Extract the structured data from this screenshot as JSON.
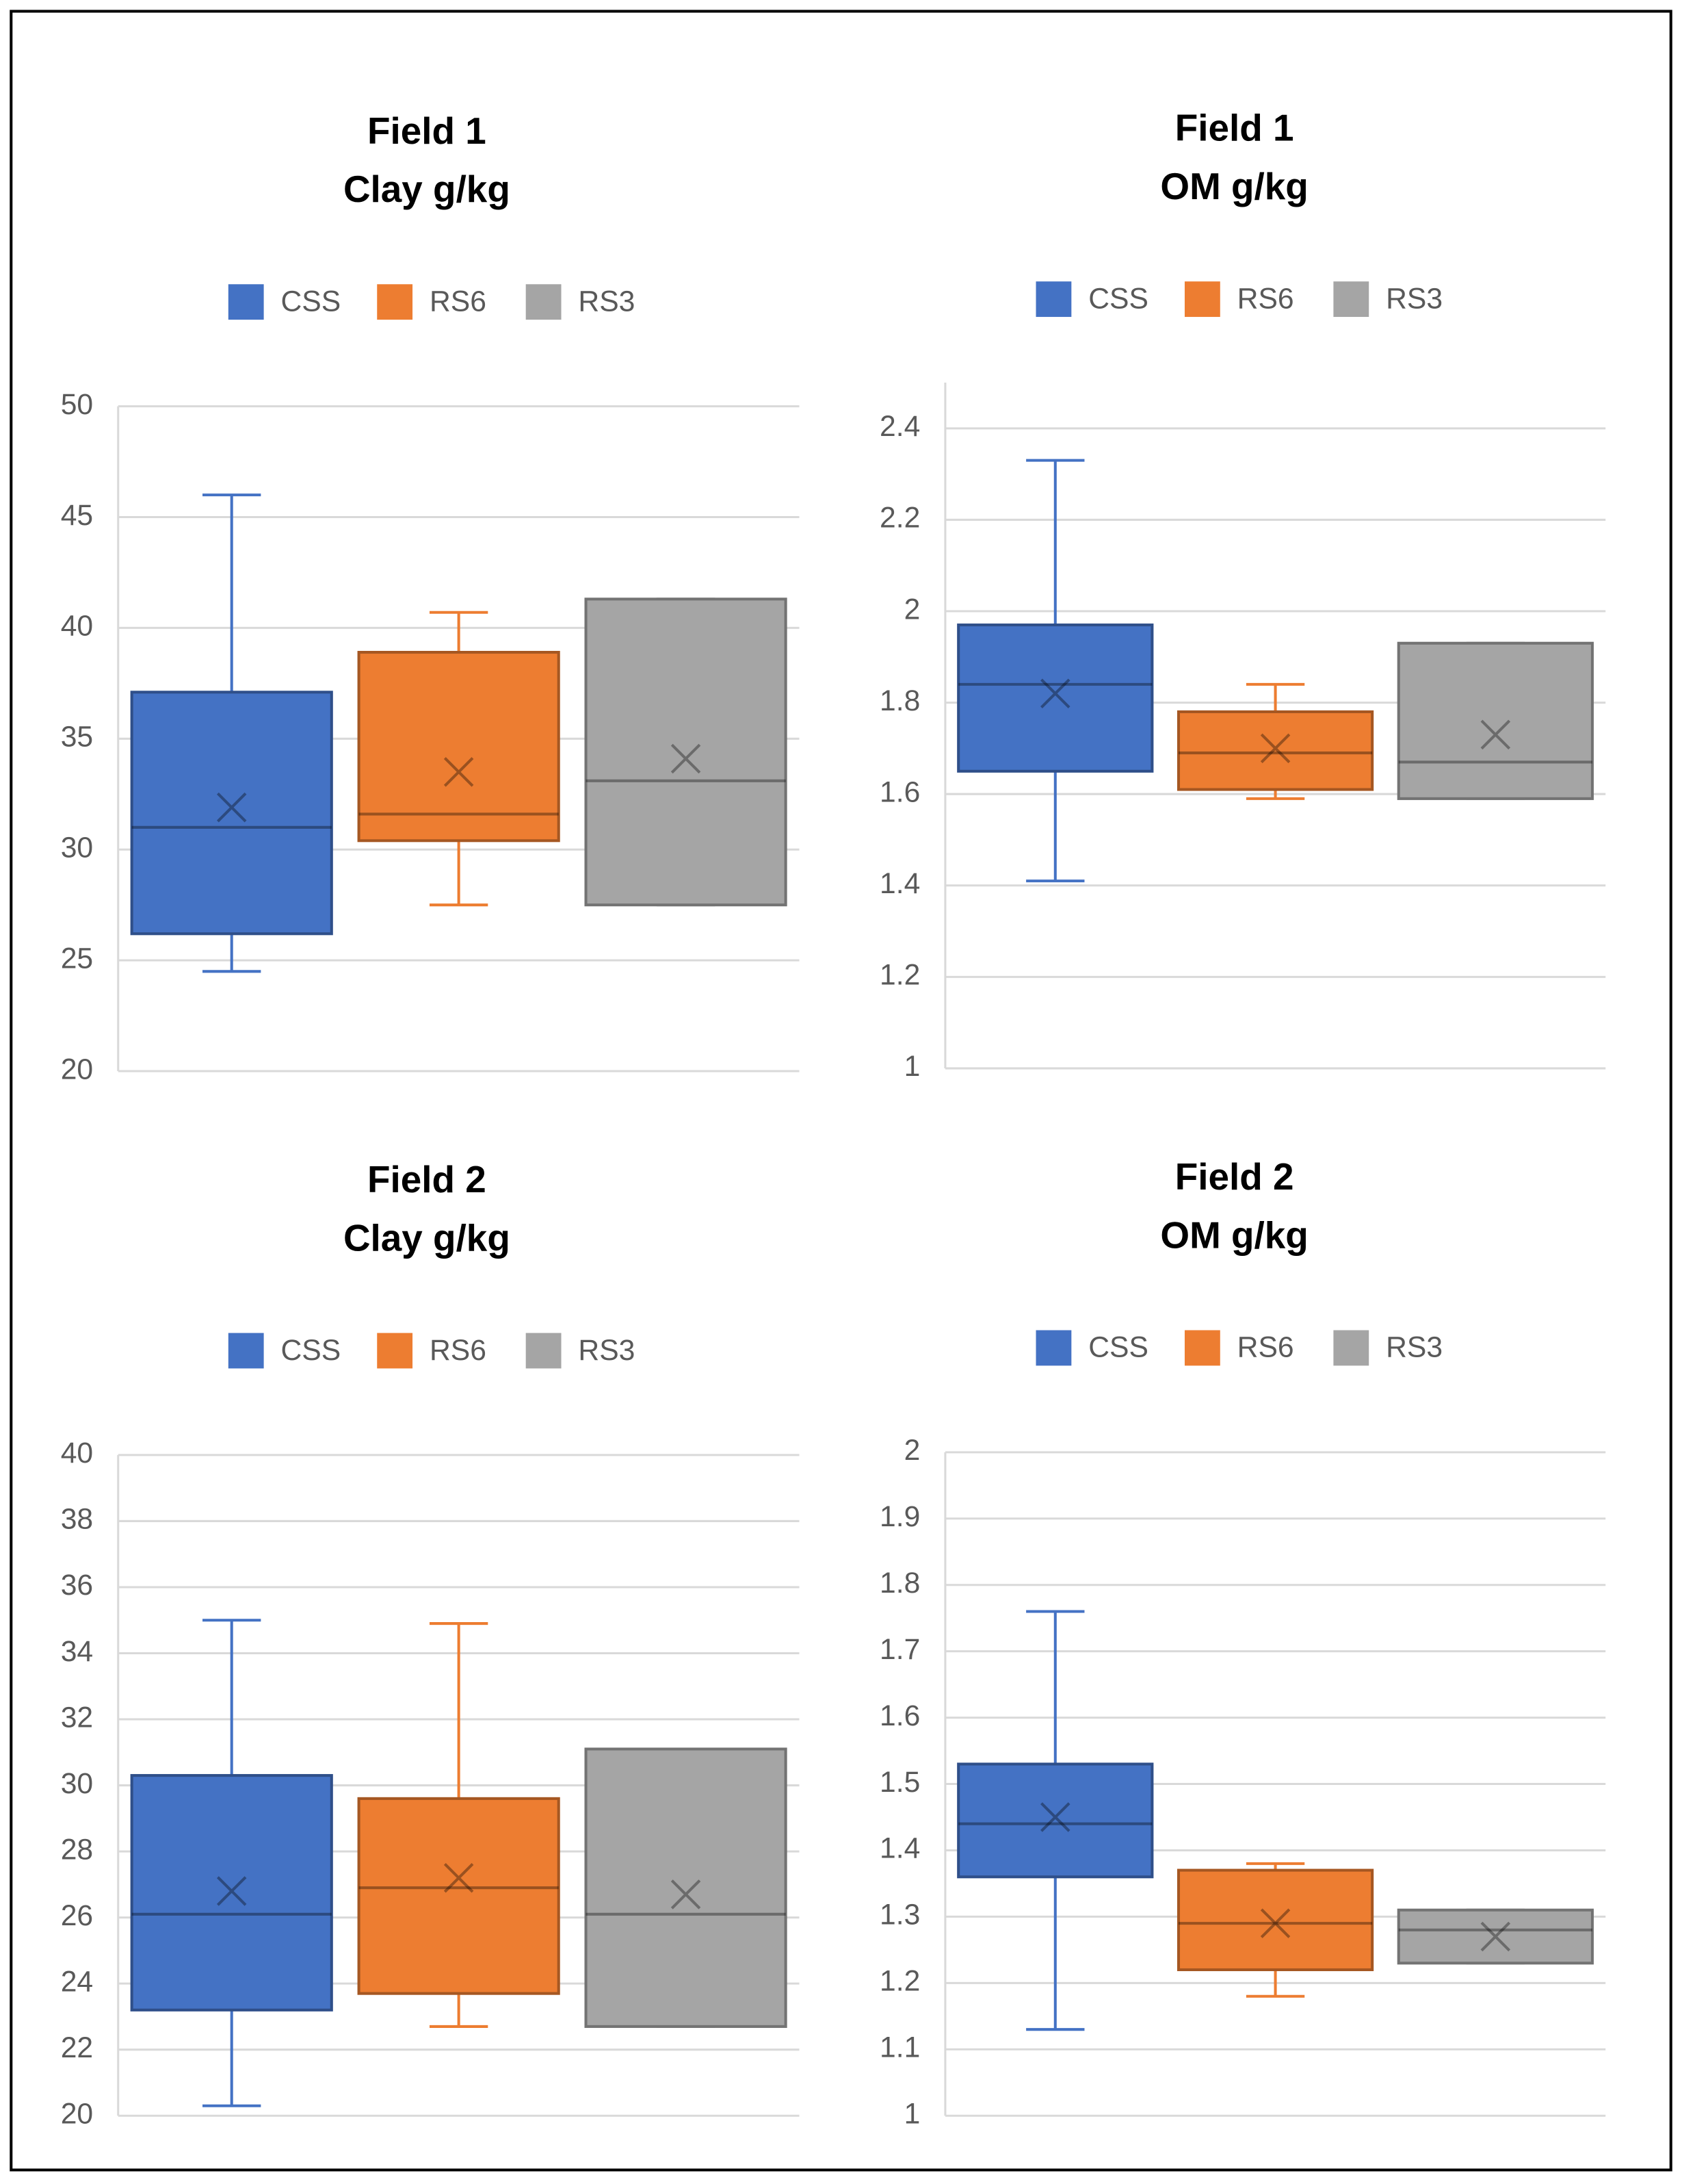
{
  "chart_data": [
    {
      "type": "box",
      "title": "Field 1",
      "subtitle": "Clay g/kg",
      "grid": true,
      "ylim": [
        20,
        50
      ],
      "yticks": [
        20,
        25,
        30,
        35,
        40,
        45,
        50
      ],
      "series": [
        {
          "name": "CSS",
          "color": "#4472c4",
          "min": 24.5,
          "q1": 26.2,
          "median": 31.0,
          "q3": 37.1,
          "max": 46.0,
          "mean": 31.9
        },
        {
          "name": "RS6",
          "color": "#ed7d31",
          "min": 27.5,
          "q1": 30.4,
          "median": 31.6,
          "q3": 38.9,
          "max": 40.7,
          "mean": 33.5
        },
        {
          "name": "RS3",
          "color": "#a5a5a5",
          "min": 27.5,
          "q1": 27.5,
          "median": 33.1,
          "q3": 41.3,
          "max": 41.3,
          "mean": 34.1
        }
      ]
    },
    {
      "type": "box",
      "title": "Field 1",
      "subtitle": "OM g/kg",
      "grid": true,
      "ylim": [
        1,
        2.5
      ],
      "yticks": [
        1,
        1.2,
        1.4,
        1.6,
        1.8,
        2,
        2.2,
        2.4
      ],
      "series": [
        {
          "name": "CSS",
          "color": "#4472c4",
          "min": 1.41,
          "q1": 1.65,
          "median": 1.84,
          "q3": 1.97,
          "max": 2.33,
          "mean": 1.82
        },
        {
          "name": "RS6",
          "color": "#ed7d31",
          "min": 1.59,
          "q1": 1.61,
          "median": 1.69,
          "q3": 1.78,
          "max": 1.84,
          "mean": 1.7
        },
        {
          "name": "RS3",
          "color": "#a5a5a5",
          "min": 1.59,
          "q1": 1.59,
          "median": 1.67,
          "q3": 1.93,
          "max": 1.93,
          "mean": 1.73
        }
      ]
    },
    {
      "type": "box",
      "title": "Field 2",
      "subtitle": "Clay g/kg",
      "grid": true,
      "ylim": [
        20,
        40
      ],
      "yticks": [
        20,
        22,
        24,
        26,
        28,
        30,
        32,
        34,
        36,
        38,
        40
      ],
      "series": [
        {
          "name": "CSS",
          "color": "#4472c4",
          "min": 20.3,
          "q1": 23.2,
          "median": 26.1,
          "q3": 30.3,
          "max": 35.0,
          "mean": 26.8
        },
        {
          "name": "RS6",
          "color": "#ed7d31",
          "min": 22.7,
          "q1": 23.7,
          "median": 26.9,
          "q3": 29.6,
          "max": 34.9,
          "mean": 27.2
        },
        {
          "name": "RS3",
          "color": "#a5a5a5",
          "min": 22.7,
          "q1": 22.7,
          "median": 26.1,
          "q3": 31.1,
          "max": 31.1,
          "mean": 26.7
        }
      ]
    },
    {
      "type": "box",
      "title": "Field 2",
      "subtitle": "OM g/kg",
      "grid": true,
      "ylim": [
        1,
        2
      ],
      "yticks": [
        1,
        1.1,
        1.2,
        1.3,
        1.4,
        1.5,
        1.6,
        1.7,
        1.8,
        1.9,
        2
      ],
      "series": [
        {
          "name": "CSS",
          "color": "#4472c4",
          "min": 1.13,
          "q1": 1.36,
          "median": 1.44,
          "q3": 1.53,
          "max": 1.76,
          "mean": 1.45
        },
        {
          "name": "RS6",
          "color": "#ed7d31",
          "min": 1.18,
          "q1": 1.22,
          "median": 1.29,
          "q3": 1.37,
          "max": 1.38,
          "mean": 1.29
        },
        {
          "name": "RS3",
          "color": "#a5a5a5",
          "min": 1.23,
          "q1": 1.23,
          "median": 1.28,
          "q3": 1.31,
          "max": 1.31,
          "mean": 1.27
        }
      ]
    }
  ]
}
